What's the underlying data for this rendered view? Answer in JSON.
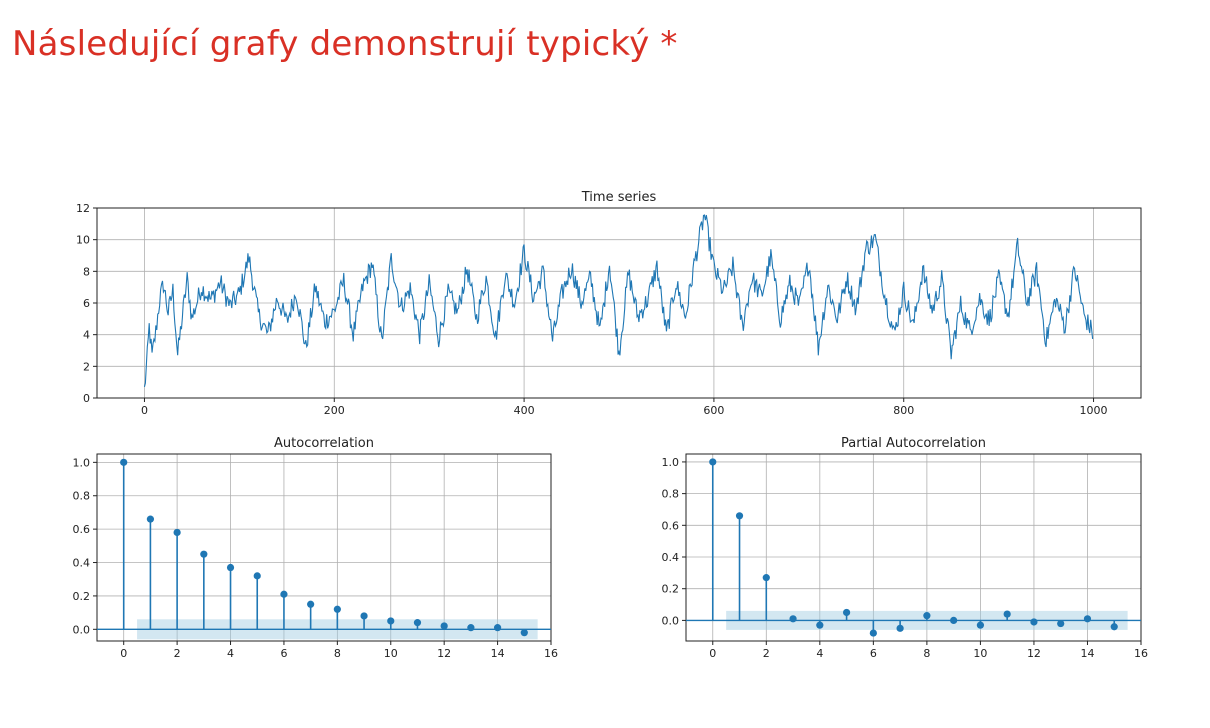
{
  "question": {
    "title": "Následující grafy demonstrují typický *"
  },
  "colors": {
    "title": "#d93025",
    "series": "#1f77b4",
    "grid": "#b0b0b0",
    "axis": "#222222",
    "band": "#9ecae1"
  },
  "chart_data": [
    {
      "type": "line",
      "title": "Time series",
      "xlabel": "",
      "ylabel": "",
      "xlim": [
        -50,
        1050
      ],
      "ylim": [
        0,
        12
      ],
      "xticks": [
        0,
        200,
        400,
        600,
        800,
        1000
      ],
      "yticks": [
        0,
        2,
        4,
        6,
        8,
        10,
        12
      ],
      "grid": true,
      "n_points": 1000,
      "anchors": [
        [
          0,
          0.5
        ],
        [
          3,
          2.6
        ],
        [
          5,
          4.5
        ],
        [
          8,
          2.6
        ],
        [
          12,
          4.2
        ],
        [
          16,
          6.2
        ],
        [
          20,
          7.2
        ],
        [
          25,
          5.4
        ],
        [
          30,
          6.8
        ],
        [
          35,
          2.7
        ],
        [
          40,
          5.2
        ],
        [
          45,
          7.5
        ],
        [
          50,
          5.0
        ],
        [
          60,
          7.0
        ],
        [
          70,
          6.2
        ],
        [
          80,
          7.3
        ],
        [
          90,
          5.8
        ],
        [
          100,
          6.6
        ],
        [
          110,
          8.9
        ],
        [
          120,
          5.3
        ],
        [
          130,
          4.0
        ],
        [
          140,
          6.3
        ],
        [
          150,
          4.8
        ],
        [
          160,
          6.7
        ],
        [
          170,
          3.1
        ],
        [
          180,
          7.0
        ],
        [
          190,
          4.8
        ],
        [
          200,
          5.5
        ],
        [
          210,
          7.4
        ],
        [
          220,
          4.0
        ],
        [
          230,
          7.0
        ],
        [
          240,
          8.5
        ],
        [
          250,
          3.5
        ],
        [
          260,
          8.8
        ],
        [
          270,
          5.7
        ],
        [
          280,
          6.9
        ],
        [
          290,
          4.0
        ],
        [
          300,
          7.2
        ],
        [
          310,
          3.8
        ],
        [
          320,
          6.6
        ],
        [
          330,
          5.4
        ],
        [
          340,
          8.2
        ],
        [
          350,
          5.0
        ],
        [
          360,
          7.6
        ],
        [
          370,
          3.8
        ],
        [
          380,
          7.8
        ],
        [
          390,
          6.0
        ],
        [
          400,
          9.3
        ],
        [
          410,
          6.3
        ],
        [
          420,
          8.0
        ],
        [
          430,
          3.7
        ],
        [
          440,
          6.6
        ],
        [
          450,
          8.3
        ],
        [
          460,
          6.0
        ],
        [
          470,
          7.6
        ],
        [
          480,
          4.2
        ],
        [
          490,
          8.5
        ],
        [
          500,
          2.8
        ],
        [
          510,
          7.9
        ],
        [
          520,
          5.1
        ],
        [
          530,
          6.2
        ],
        [
          540,
          8.3
        ],
        [
          550,
          4.0
        ],
        [
          560,
          7.3
        ],
        [
          570,
          5.1
        ],
        [
          580,
          8.7
        ],
        [
          590,
          11.6
        ],
        [
          600,
          8.2
        ],
        [
          610,
          6.7
        ],
        [
          620,
          8.3
        ],
        [
          630,
          4.5
        ],
        [
          640,
          7.6
        ],
        [
          650,
          6.4
        ],
        [
          660,
          8.9
        ],
        [
          670,
          5.0
        ],
        [
          680,
          7.2
        ],
        [
          690,
          5.8
        ],
        [
          700,
          8.6
        ],
        [
          710,
          3.2
        ],
        [
          720,
          7.1
        ],
        [
          730,
          5.0
        ],
        [
          740,
          7.6
        ],
        [
          750,
          5.6
        ],
        [
          760,
          9.4
        ],
        [
          770,
          10.1
        ],
        [
          780,
          6.5
        ],
        [
          790,
          4.0
        ],
        [
          800,
          6.8
        ],
        [
          810,
          4.5
        ],
        [
          820,
          8.1
        ],
        [
          830,
          5.5
        ],
        [
          840,
          7.5
        ],
        [
          850,
          2.8
        ],
        [
          860,
          5.9
        ],
        [
          870,
          4.2
        ],
        [
          880,
          6.3
        ],
        [
          890,
          4.9
        ],
        [
          900,
          7.5
        ],
        [
          910,
          5.2
        ],
        [
          920,
          9.6
        ],
        [
          930,
          6.0
        ],
        [
          940,
          8.0
        ],
        [
          950,
          3.6
        ],
        [
          960,
          6.3
        ],
        [
          970,
          4.5
        ],
        [
          980,
          8.2
        ],
        [
          990,
          5.2
        ],
        [
          1000,
          4.0
        ]
      ]
    },
    {
      "type": "stem",
      "title": "Autocorrelation",
      "xlim": [
        -1,
        16
      ],
      "ylim": [
        -0.07,
        1.05
      ],
      "xticks": [
        0,
        2,
        4,
        6,
        8,
        10,
        12,
        14,
        16
      ],
      "yticks": [
        0.0,
        0.2,
        0.4,
        0.6,
        0.8,
        1.0
      ],
      "ytick_labels": [
        "0.0",
        "0.2",
        "0.4",
        "0.6",
        "0.8",
        "1.0"
      ],
      "grid": true,
      "lags": [
        0,
        1,
        2,
        3,
        4,
        5,
        6,
        7,
        8,
        9,
        10,
        11,
        12,
        13,
        14,
        15
      ],
      "values": [
        1.0,
        0.66,
        0.58,
        0.45,
        0.37,
        0.32,
        0.21,
        0.15,
        0.12,
        0.08,
        0.05,
        0.04,
        0.02,
        0.01,
        0.01,
        -0.02
      ],
      "confidence_band": 0.06
    },
    {
      "type": "stem",
      "title": "Partial Autocorrelation",
      "xlim": [
        -1,
        16
      ],
      "ylim": [
        -0.13,
        1.05
      ],
      "xticks": [
        0,
        2,
        4,
        6,
        8,
        10,
        12,
        14,
        16
      ],
      "yticks": [
        0.0,
        0.2,
        0.4,
        0.6,
        0.8,
        1.0
      ],
      "ytick_labels": [
        "0.0",
        "0.2",
        "0.4",
        "0.6",
        "0.8",
        "1.0"
      ],
      "grid": true,
      "lags": [
        0,
        1,
        2,
        3,
        4,
        5,
        6,
        7,
        8,
        9,
        10,
        11,
        12,
        13,
        14,
        15
      ],
      "values": [
        1.0,
        0.66,
        0.27,
        0.01,
        -0.03,
        0.05,
        -0.08,
        -0.05,
        0.03,
        0.0,
        -0.03,
        0.04,
        -0.01,
        -0.02,
        0.01,
        -0.04
      ],
      "confidence_band": 0.06
    }
  ]
}
